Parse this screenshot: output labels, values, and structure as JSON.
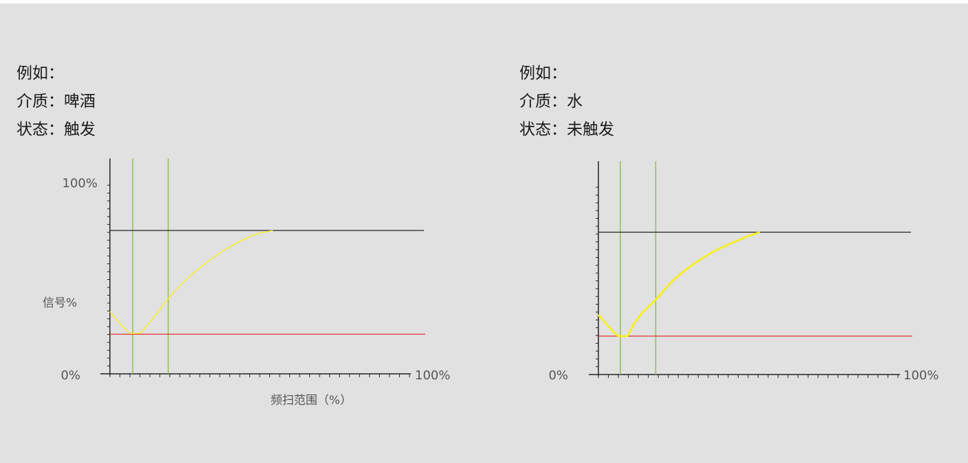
{
  "panels": [
    {
      "lines": [
        "例如：",
        "介质：啤酒",
        "状态：触发"
      ]
    },
    {
      "lines": [
        "例如：",
        "介质：水",
        "状态：未触发"
      ]
    }
  ],
  "colors": {
    "background": "#e1e1e1",
    "signal_curve": "#f5ee2a",
    "threshold_upper": "#222222",
    "threshold_lower": "#e0322d",
    "markers": "#8cc34a",
    "axis": "#222222"
  },
  "chart_data": [
    {
      "type": "line",
      "title": "",
      "xlabel": "频扫范围（%）",
      "ylabel": "信号%",
      "xlim": [
        0,
        100
      ],
      "ylim": [
        0,
        100
      ],
      "y_tick_labels": [
        "100%",
        "0%"
      ],
      "x_tick_labels": [
        "100%"
      ],
      "markers_x": [
        7.3,
        18.6
      ],
      "thresholds": {
        "upper": 76,
        "lower": 21
      },
      "series": [
        {
          "x": [
            0,
            3,
            6,
            8,
            10,
            12,
            15,
            18.6,
            25,
            35,
            45,
            52
          ],
          "y": [
            33,
            27,
            22,
            21.5,
            22,
            26,
            32,
            40,
            51,
            64,
            73,
            76
          ]
        }
      ]
    },
    {
      "type": "line",
      "title": "",
      "xlabel": "",
      "ylabel": "",
      "xlim": [
        0,
        100
      ],
      "ylim": [
        0,
        100
      ],
      "y_tick_labels": [
        "0%"
      ],
      "x_tick_labels": [
        "100%"
      ],
      "markers_x": [
        7.0,
        18.3
      ],
      "thresholds": {
        "upper": 76,
        "lower": 20.5
      },
      "series": [
        {
          "x": [
            0,
            3,
            6,
            7.5,
            9.5,
            11,
            14,
            18.3,
            25,
            35,
            45,
            51.5
          ],
          "y": [
            32,
            26,
            21,
            20.5,
            21,
            26,
            33,
            40,
            52,
            64,
            72,
            76
          ]
        }
      ]
    }
  ]
}
